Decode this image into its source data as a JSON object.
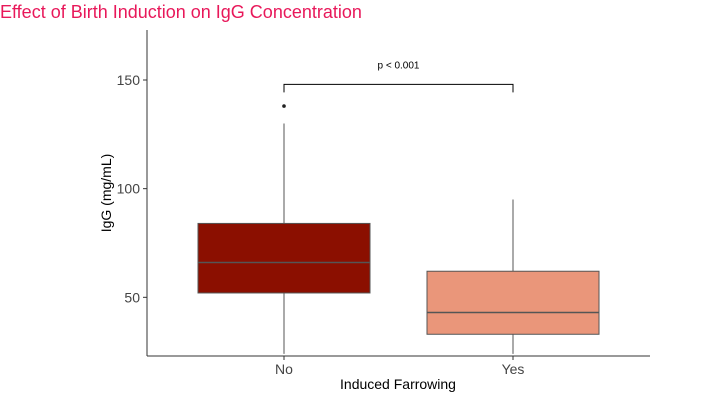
{
  "page": {
    "title": "Effect of Birth Induction on IgG Concentration"
  },
  "chart_data": {
    "type": "box",
    "title": "Effect of Birth Induction on IgG Concentration",
    "xlabel": "Induced Farrowing",
    "ylabel": "IgG (mg/mL)",
    "categories": [
      "No",
      "Yes"
    ],
    "ylim": [
      23,
      173
    ],
    "yticks": [
      50,
      100,
      150
    ],
    "grid": false,
    "legend": "none",
    "boxes": [
      {
        "category": "No",
        "min": 24,
        "q1": 52,
        "median": 66,
        "q3": 84,
        "max": 130,
        "outliers": [
          138
        ],
        "color": "#8b0f00"
      },
      {
        "category": "Yes",
        "min": 24,
        "q1": 33,
        "median": 43,
        "q3": 62,
        "max": 95,
        "outliers": [],
        "color": "#ea967a"
      }
    ],
    "annotation": {
      "text": "p < 0.001",
      "from": "No",
      "to": "Yes",
      "y": 148
    }
  }
}
